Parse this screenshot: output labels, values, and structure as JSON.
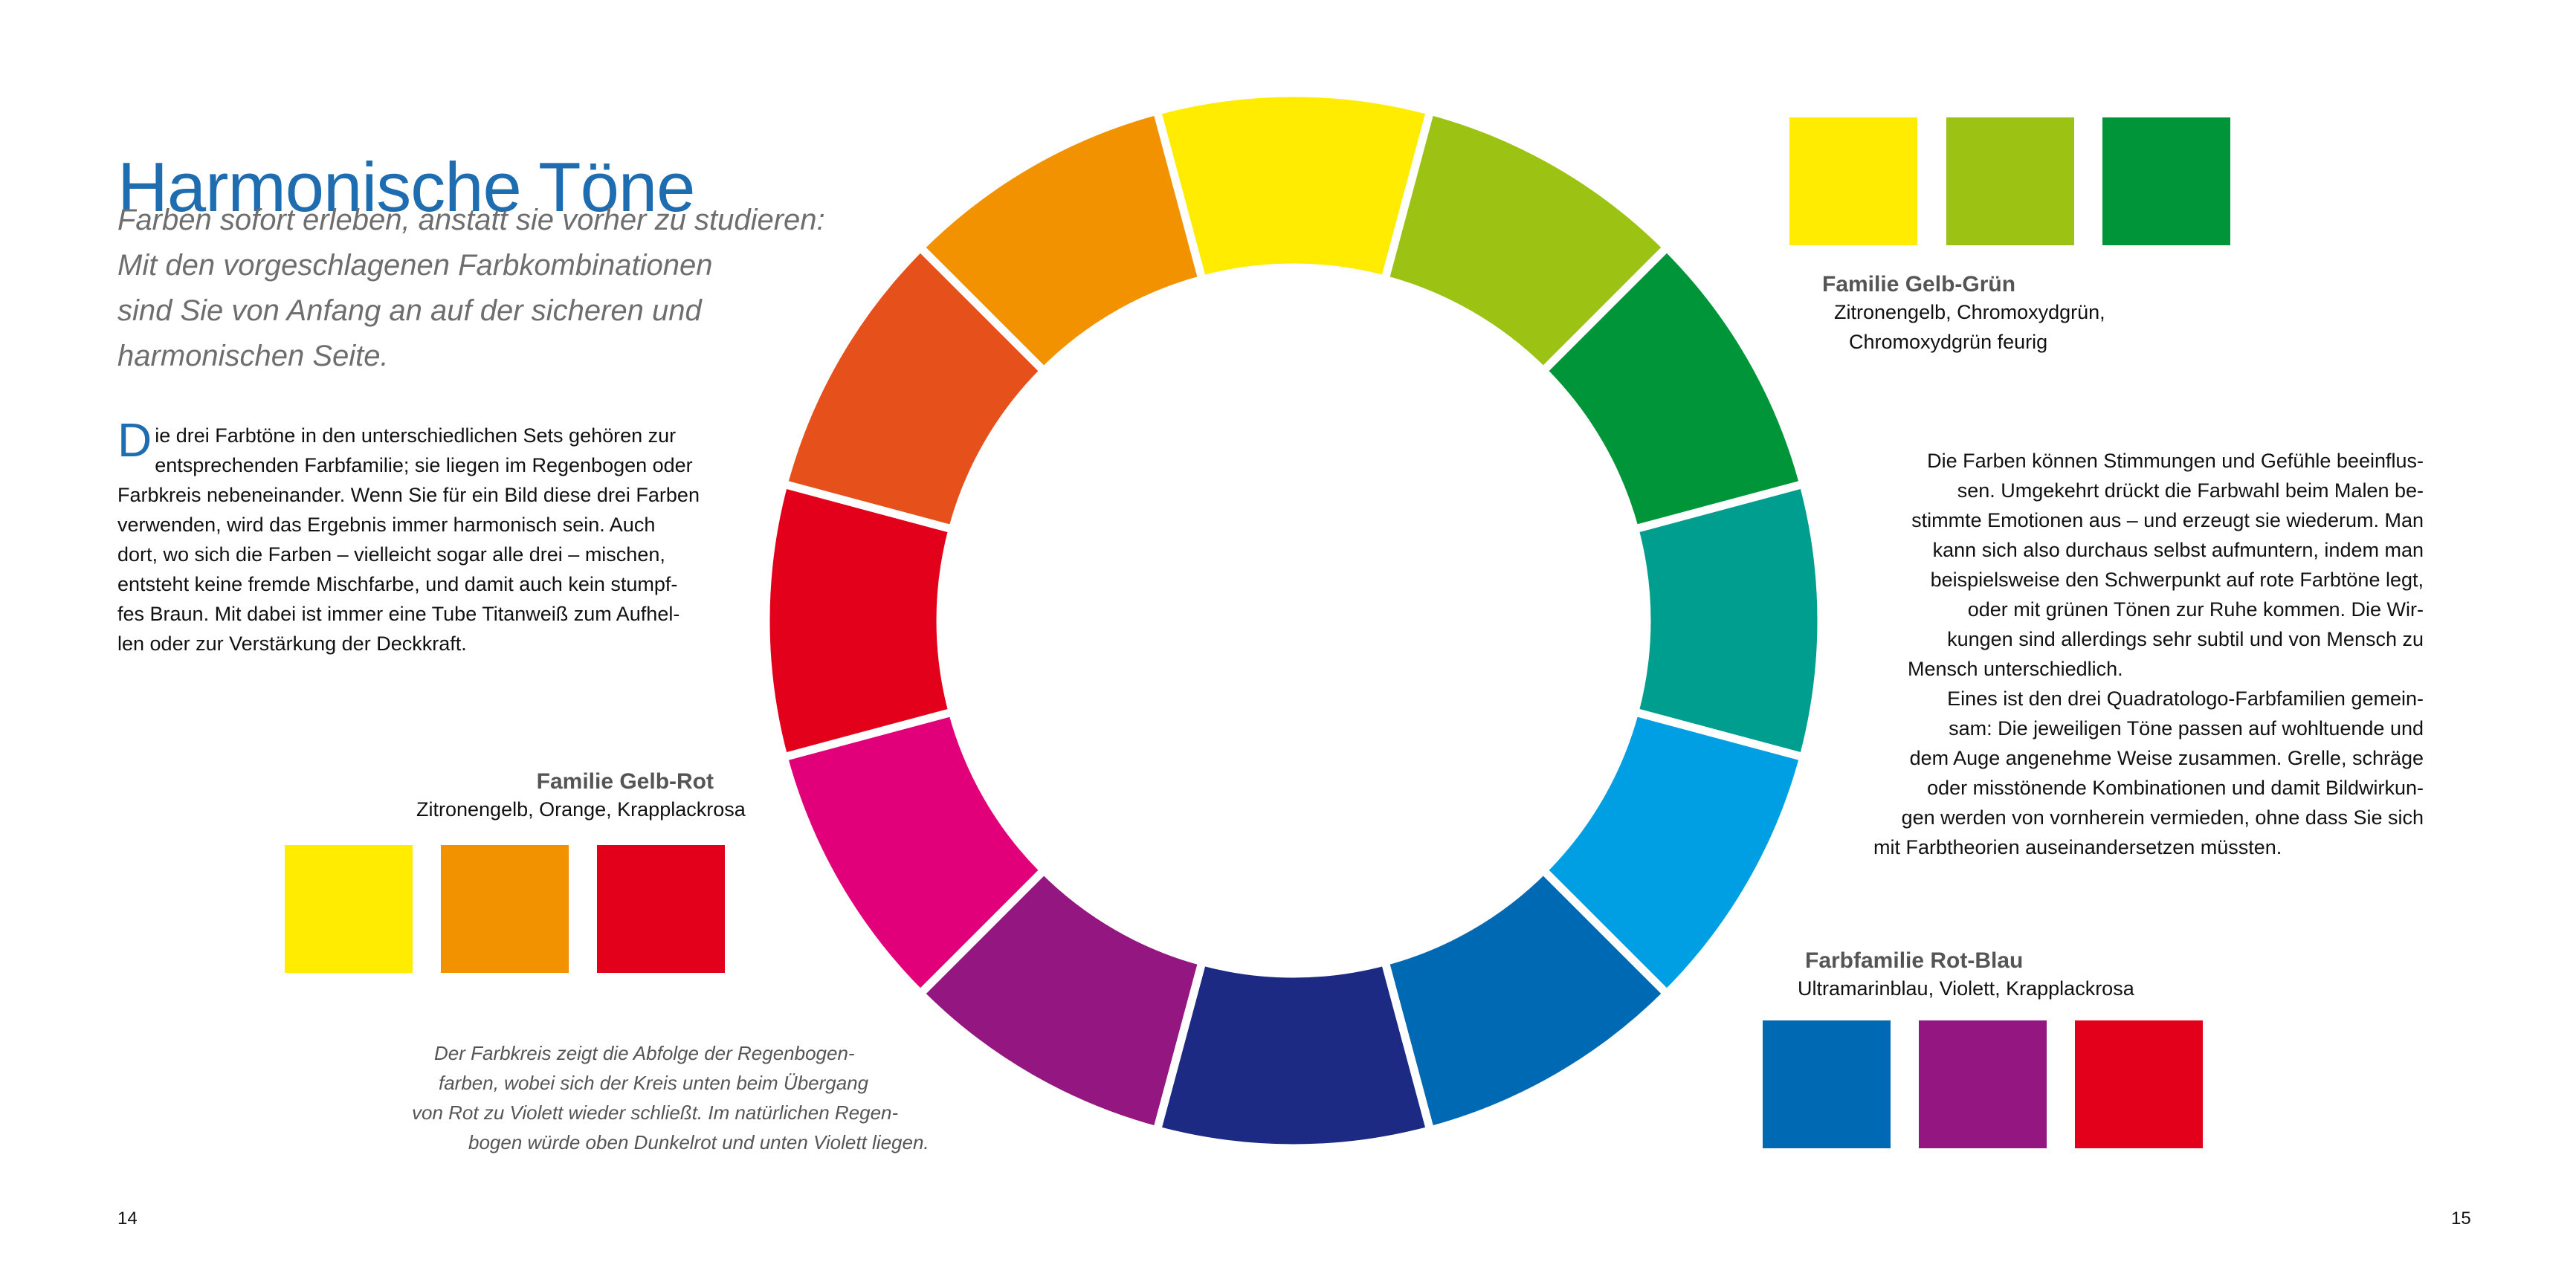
{
  "title": "Harmonische Töne",
  "subtitle": [
    "Farben sofort erleben, anstatt sie vorher zu studieren:",
    "Mit den vorgeschlagenen Farbkombinationen",
    "sind Sie von Anfang an auf der sicheren und",
    "harmonischen Seite."
  ],
  "intro": {
    "dropcap": "D",
    "lines": [
      "ie drei Farbtöne in den unterschiedlichen Sets gehören zur",
      "entsprechenden Farbfamilie; sie liegen im Regenbogen oder",
      "Farbkreis nebeneinander. Wenn Sie für ein Bild diese drei Farben",
      "verwenden, wird das Ergebnis immer harmonisch sein. Auch",
      "dort, wo sich die Farben – vielleicht sogar alle drei – mischen,",
      "entsteht keine fremde Mischfarbe, und damit auch kein stumpf-",
      "fes Braun. Mit dabei ist immer eine Tube Titanweiß zum Aufhel-",
      "len oder zur Verstärkung der Deckkraft."
    ]
  },
  "right_text": [
    "Die Farben können Stimmungen und Gefühle beeinflus-",
    "sen. Umgekehrt drückt die Farbwahl beim Malen be-",
    "stimmte Emotionen aus – und erzeugt sie wiederum. Man",
    "kann sich also durchaus selbst aufmuntern, indem man",
    "beispielsweise den Schwerpunkt auf rote Farbtöne legt,",
    "oder mit grünen Tönen zur Ruhe kommen. Die Wir-",
    "kungen sind allerdings sehr subtil und von Mensch zu",
    "Mensch unterschiedlich.",
    "Eines ist den drei Quadratologo-Farbfamilien gemein-",
    "sam: Die jeweiligen Töne passen auf wohltuende und",
    "dem Auge angenehme Weise zusammen. Grelle, schräge",
    "oder misstönende Kombinationen und damit Bildwirkun-",
    "gen werden von vornherein vermieden, ohne dass Sie sich",
    "mit Farbtheorien auseinandersetzen müssten."
  ],
  "families": {
    "gelb_gruen": {
      "title": "Familie Gelb-Grün",
      "colors_line1": "Zitronengelb, Chromoxydgrün,",
      "colors_line2": "Chromoxydgrün feurig",
      "swatches": [
        "#ffec00",
        "#9cc213",
        "#009539"
      ]
    },
    "gelb_rot": {
      "title": "Familie Gelb-Rot",
      "colors": "Zitronengelb, Orange, Krapplackrosa",
      "swatches": [
        "#ffec00",
        "#f39200",
        "#e2001a"
      ]
    },
    "rot_blau": {
      "title": "Farbfamilie Rot-Blau",
      "colors": "Ultramarinblau, Violett, Krapplackrosa",
      "swatches": [
        "#0069b4",
        "#941680",
        "#e2001a"
      ]
    }
  },
  "caption": [
    "Der Farbkreis zeigt die Abfolge der Regenbogen-",
    "farben, wobei sich der Kreis unten beim Übergang",
    "von Rot zu Violett wieder schließt. Im natürlichen Regen-",
    "bogen würde oben Dunkelrot und unten Violett liegen."
  ],
  "wheel_colors": [
    "#ffec00",
    "#9cc213",
    "#009539",
    "#009e8f",
    "#009fe3",
    "#0069b4",
    "#1d2a84",
    "#941680",
    "#e2007a",
    "#e2001a",
    "#e6501b",
    "#f39200"
  ],
  "page_left": "14",
  "page_right": "15"
}
